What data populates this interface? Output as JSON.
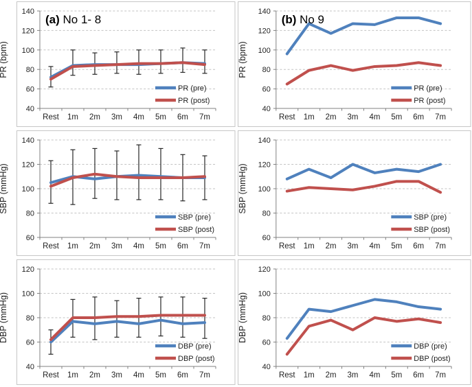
{
  "figure": {
    "description_colors": {
      "pre_line": "#4F81BD",
      "post_line": "#C0504D",
      "gridline": "#C3C3C3",
      "axis": "#808080",
      "frame": "#C6C6C6",
      "error_bar": "#262626",
      "text": "#1F1F1F"
    }
  },
  "chart_data": [
    {
      "type": "line",
      "group": "a",
      "title_bold": "(a)",
      "title_rest": " No 1- 8",
      "ylabel": "PR (bpm)",
      "ylim": [
        40,
        140
      ],
      "ytick_step": 20,
      "yticks": [
        40,
        60,
        80,
        100,
        120,
        140
      ],
      "grid": "dashed",
      "legend_position": "bottom-right",
      "categories": [
        "Rest",
        "1m",
        "2m",
        "3m",
        "4m",
        "5m",
        "6m",
        "7m"
      ],
      "series": [
        {
          "name": "PR (pre)",
          "color": "#4F81BD",
          "values": [
            72,
            84,
            85,
            85,
            85,
            86,
            87,
            86
          ]
        },
        {
          "name": "PR (post)",
          "color": "#C0504D",
          "values": [
            70,
            83,
            84,
            85,
            86,
            86,
            87,
            85
          ]
        }
      ],
      "error_bars": {
        "lo": [
          62,
          74,
          75,
          76,
          75,
          76,
          77,
          76
        ],
        "hi": [
          83,
          100,
          97,
          98,
          100,
          100,
          102,
          100
        ]
      }
    },
    {
      "type": "line",
      "group": "b",
      "title_bold": "(b)",
      "title_rest": " No 9",
      "ylabel": "PR (bpm)",
      "ylim": [
        40,
        140
      ],
      "ytick_step": 20,
      "yticks": [
        40,
        60,
        80,
        100,
        120,
        140
      ],
      "grid": "dashed",
      "legend_position": "bottom-right",
      "categories": [
        "Rest",
        "1m",
        "2m",
        "3m",
        "4m",
        "5m",
        "6m",
        "7m"
      ],
      "series": [
        {
          "name": "PR (pre)",
          "color": "#4F81BD",
          "values": [
            96,
            127,
            117,
            127,
            126,
            133,
            133,
            127
          ]
        },
        {
          "name": "PR (post)",
          "color": "#C0504D",
          "values": [
            65,
            79,
            84,
            79,
            83,
            84,
            87,
            84
          ]
        }
      ],
      "error_bars": null
    },
    {
      "type": "line",
      "group": "a",
      "title_bold": "",
      "title_rest": "",
      "ylabel": "SBP (mmHg)",
      "ylim": [
        60,
        140
      ],
      "ytick_step": 20,
      "yticks": [
        60,
        80,
        100,
        120,
        140
      ],
      "grid": "dashed",
      "legend_position": "bottom-right",
      "categories": [
        "Rest",
        "1m",
        "2m",
        "3m",
        "4m",
        "5m",
        "6m",
        "7m"
      ],
      "series": [
        {
          "name": "SBP (pre)",
          "color": "#4F81BD",
          "values": [
            105,
            110,
            108,
            110,
            111,
            110,
            109,
            109
          ]
        },
        {
          "name": "SBP (post)",
          "color": "#C0504D",
          "values": [
            102,
            109,
            112,
            110,
            109,
            109,
            109,
            110
          ]
        }
      ],
      "error_bars": {
        "lo": [
          88,
          87,
          92,
          91,
          91,
          91,
          90,
          91
        ],
        "hi": [
          123,
          132,
          133,
          131,
          136,
          133,
          128,
          127
        ]
      }
    },
    {
      "type": "line",
      "group": "b",
      "title_bold": "",
      "title_rest": "",
      "ylabel": "SBP (mmHg)",
      "ylim": [
        60,
        140
      ],
      "ytick_step": 20,
      "yticks": [
        60,
        80,
        100,
        120,
        140
      ],
      "grid": "dashed",
      "legend_position": "bottom-right",
      "categories": [
        "Rest",
        "1m",
        "2m",
        "3m",
        "4m",
        "5m",
        "6m",
        "7m"
      ],
      "series": [
        {
          "name": "SBP (pre)",
          "color": "#4F81BD",
          "values": [
            108,
            116,
            109,
            120,
            113,
            116,
            114,
            120
          ]
        },
        {
          "name": "SBP (post)",
          "color": "#C0504D",
          "values": [
            98,
            101,
            100,
            99,
            102,
            106,
            106,
            97
          ]
        }
      ],
      "error_bars": null
    },
    {
      "type": "line",
      "group": "a",
      "title_bold": "",
      "title_rest": "",
      "ylabel": "DBP (mmHg)",
      "ylim": [
        40,
        120
      ],
      "ytick_step": 20,
      "yticks": [
        40,
        60,
        80,
        100,
        120
      ],
      "grid": "dashed",
      "legend_position": "bottom-right",
      "categories": [
        "Rest",
        "1m",
        "2m",
        "3m",
        "4m",
        "5m",
        "6m",
        "7m"
      ],
      "series": [
        {
          "name": "DBP (pre)",
          "color": "#4F81BD",
          "values": [
            60,
            77,
            75,
            77,
            75,
            78,
            75,
            76
          ]
        },
        {
          "name": "DBP (post)",
          "color": "#C0504D",
          "values": [
            62,
            80,
            80,
            81,
            81,
            82,
            82,
            82
          ]
        }
      ],
      "error_bars": {
        "lo": [
          50,
          64,
          62,
          64,
          64,
          65,
          64,
          63
        ],
        "hi": [
          70,
          95,
          97,
          94,
          96,
          97,
          97,
          96
        ]
      }
    },
    {
      "type": "line",
      "group": "b",
      "title_bold": "",
      "title_rest": "",
      "ylabel": "DBP (mmHg)",
      "ylim": [
        40,
        120
      ],
      "ytick_step": 20,
      "yticks": [
        40,
        60,
        80,
        100,
        120
      ],
      "grid": "dashed",
      "legend_position": "bottom-right",
      "categories": [
        "Rest",
        "1m",
        "2m",
        "3m",
        "4m",
        "5m",
        "6m",
        "7m"
      ],
      "series": [
        {
          "name": "DBP (pre)",
          "color": "#4F81BD",
          "values": [
            63,
            87,
            85,
            90,
            95,
            93,
            89,
            87
          ]
        },
        {
          "name": "DBP (post)",
          "color": "#C0504D",
          "values": [
            50,
            73,
            78,
            70,
            80,
            77,
            79,
            76
          ]
        }
      ],
      "error_bars": null
    }
  ]
}
